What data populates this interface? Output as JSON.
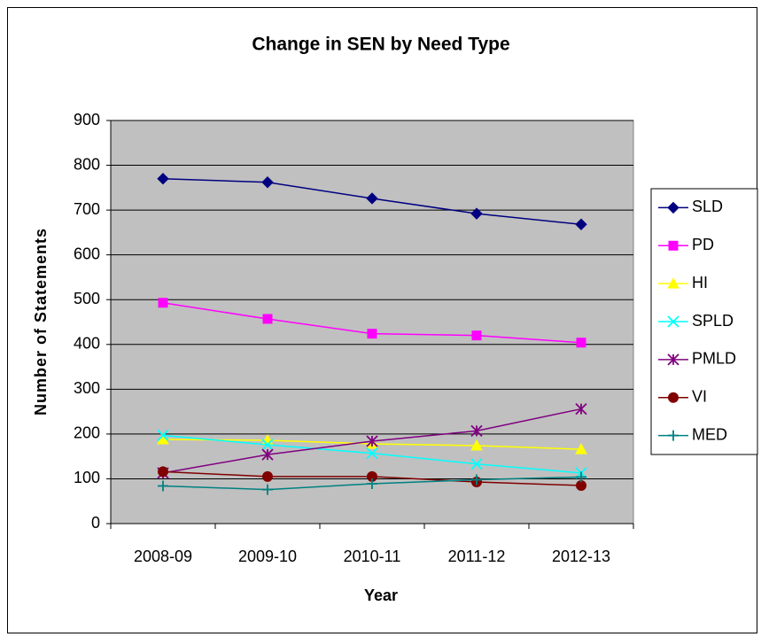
{
  "chart_data": {
    "type": "line",
    "title": "Change in SEN by Need Type",
    "x_label": "Year",
    "y_label": "Number of Statements",
    "categories": [
      "2008-09",
      "2009-10",
      "2010-11",
      "2011-12",
      "2012-13"
    ],
    "series": [
      {
        "name": "SLD",
        "color": "#000080",
        "marker": "diamond",
        "values": [
          770,
          762,
          726,
          692,
          668
        ]
      },
      {
        "name": "PD",
        "color": "#ff00ff",
        "marker": "square",
        "values": [
          493,
          457,
          424,
          420,
          404
        ]
      },
      {
        "name": "HI",
        "color": "#ffff00",
        "marker": "triangle",
        "values": [
          188,
          186,
          178,
          174,
          166
        ]
      },
      {
        "name": "SPLD",
        "color": "#00ffff",
        "marker": "x",
        "values": [
          197,
          176,
          157,
          133,
          113
        ]
      },
      {
        "name": "PMLD",
        "color": "#800080",
        "marker": "asterisk",
        "values": [
          113,
          154,
          184,
          207,
          256
        ]
      },
      {
        "name": "VI",
        "color": "#800000",
        "marker": "circle",
        "values": [
          116,
          105,
          105,
          93,
          85
        ]
      },
      {
        "name": "MED",
        "color": "#008080",
        "marker": "plus",
        "values": [
          84,
          76,
          89,
          98,
          104
        ]
      }
    ],
    "ylim": [
      0,
      900
    ],
    "yticks": [
      0,
      100,
      200,
      300,
      400,
      500,
      600,
      700,
      800,
      900
    ],
    "grid": true,
    "legend": "right"
  }
}
